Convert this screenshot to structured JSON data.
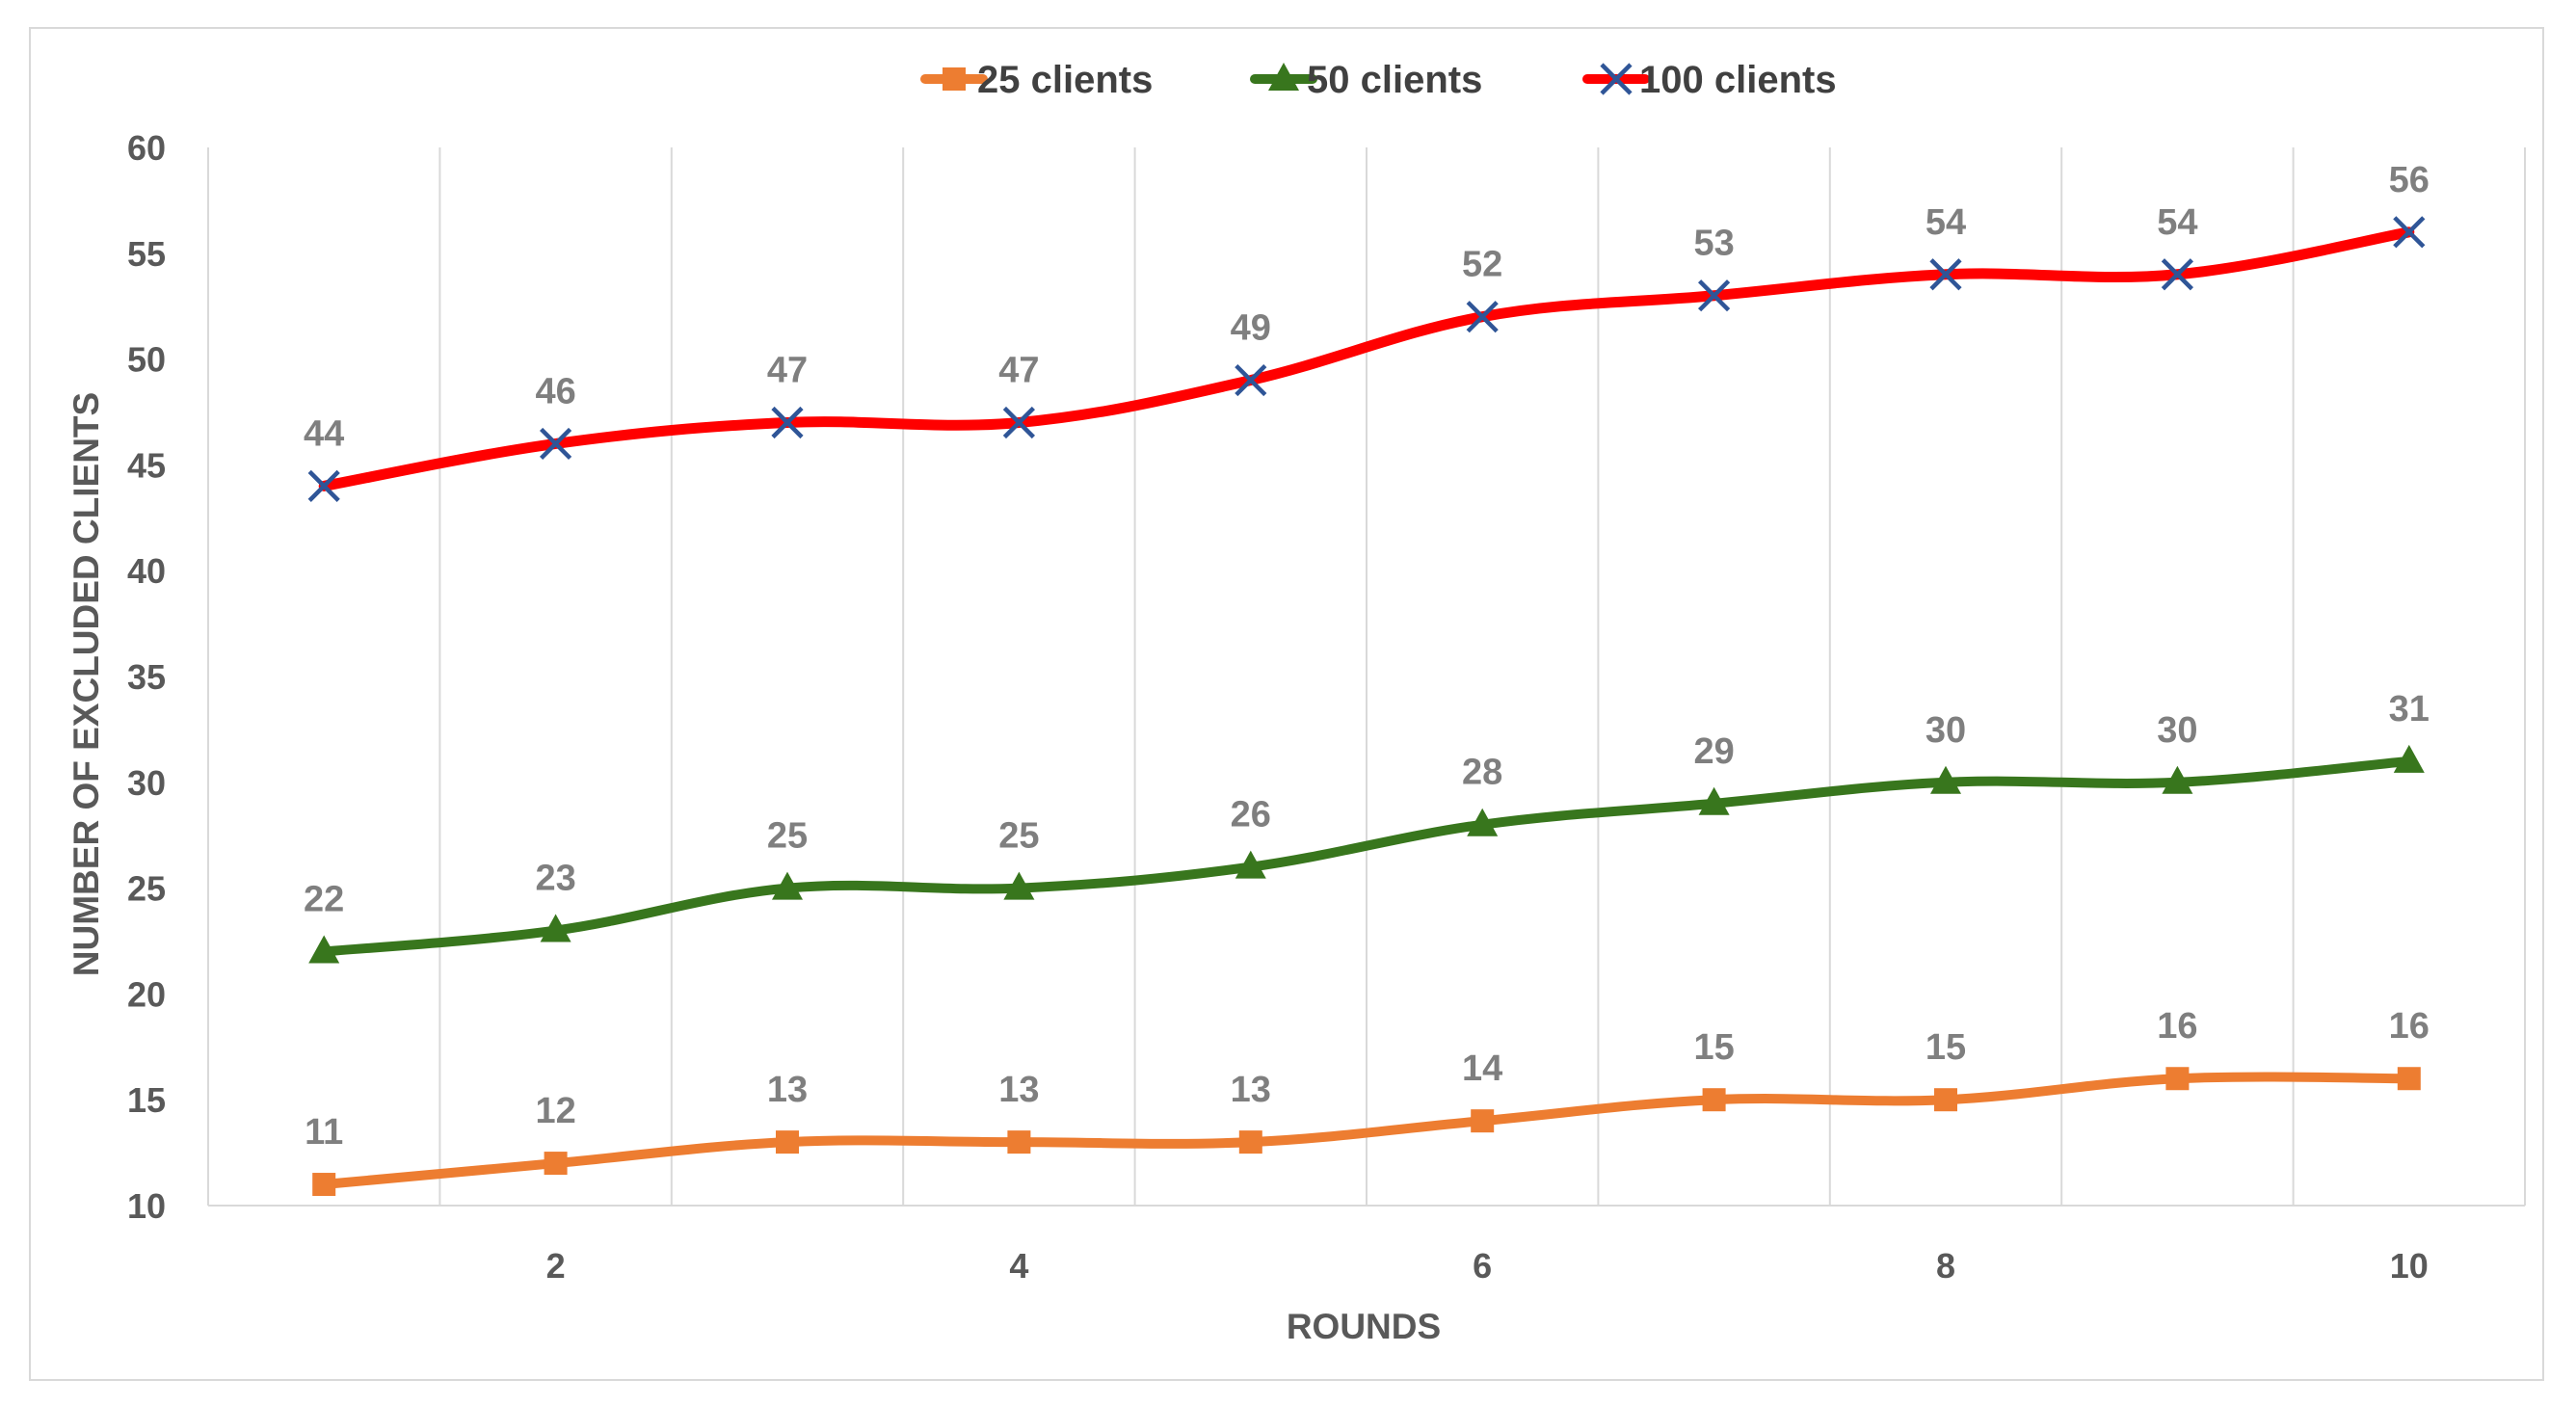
{
  "chart_data": {
    "type": "line",
    "title": "",
    "xlabel": "ROUNDS",
    "ylabel": "NUMBER OF EXCLUDED CLIENTS",
    "x": [
      1,
      2,
      3,
      4,
      5,
      6,
      7,
      8,
      9,
      10
    ],
    "x_tick_labels": [
      "2",
      "4",
      "6",
      "8",
      "10"
    ],
    "x_tick_values": [
      2,
      4,
      6,
      8,
      10
    ],
    "y_ticks": [
      "10",
      "15",
      "20",
      "25",
      "30",
      "35",
      "40",
      "45",
      "50",
      "55",
      "60"
    ],
    "ylim": [
      10,
      60
    ],
    "grid": "vertical",
    "legend_position": "top-center",
    "series": [
      {
        "name": "25 clients",
        "values": [
          11,
          12,
          13,
          13,
          13,
          14,
          15,
          15,
          16,
          16
        ],
        "color": "#ed7d31",
        "marker": "square"
      },
      {
        "name": "50 clients",
        "values": [
          22,
          23,
          25,
          25,
          26,
          28,
          29,
          30,
          30,
          31
        ],
        "color": "#38761d",
        "marker": "triangle"
      },
      {
        "name": "100 clients",
        "values": [
          44,
          46,
          47,
          47,
          49,
          52,
          53,
          54,
          54,
          56
        ],
        "color": "#ff0000",
        "marker": "x",
        "marker_color": "#2f5597"
      }
    ]
  }
}
